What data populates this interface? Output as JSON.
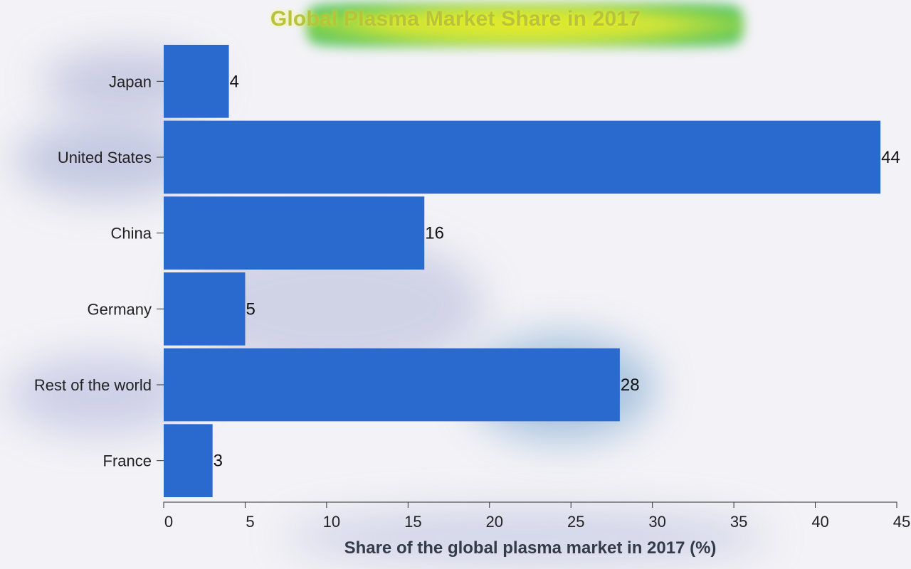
{
  "chart_data": {
    "type": "bar",
    "orientation": "horizontal",
    "title": "Global Plasma Market Share in 2017",
    "xlabel": "Share of the global plasma market in 2017 (%)",
    "ylabel": "",
    "categories": [
      "Japan",
      "United States",
      "China",
      "Germany",
      "Rest of the world",
      "France"
    ],
    "values": [
      4,
      44,
      16,
      5,
      28,
      3
    ],
    "xlim": [
      0,
      45
    ],
    "xticks": [
      0,
      5,
      10,
      15,
      20,
      25,
      30,
      35,
      40,
      45
    ],
    "grid": false,
    "legend": "none",
    "colors": {
      "bar": "#2a6acf",
      "axis": "#333333",
      "background": "#f3f2f6"
    }
  }
}
